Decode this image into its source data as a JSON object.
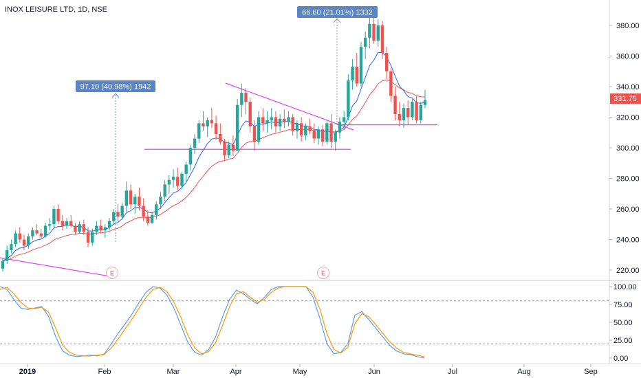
{
  "header": {
    "title": "INOX LEISURE LTD, 1D, NSE"
  },
  "chart_data": [
    {
      "type": "candlestick",
      "title": "INOX LEISURE LTD, 1D, NSE",
      "y_ticks": [
        "220.00",
        "240.00",
        "260.00",
        "280.00",
        "300.00",
        "320.00",
        "340.00",
        "360.00",
        "380.00"
      ],
      "ylim": [
        212,
        392
      ],
      "last_price": "331.75",
      "x_ticks": [
        "2019",
        "Feb",
        "Mar",
        "Apr",
        "May",
        "Jun",
        "Jul",
        "Aug",
        "Sep"
      ],
      "measure_labels": [
        "97.10 (40.98%) 1942",
        "66.60 (21.01%) 1332"
      ],
      "earnings_markers": [
        "E",
        "E"
      ],
      "horizontal_levels": [
        299,
        315
      ],
      "ohlc": [
        [
          221,
          228,
          219,
          226
        ],
        [
          226,
          236,
          224,
          233
        ],
        [
          233,
          240,
          231,
          237
        ],
        [
          237,
          246,
          235,
          244
        ],
        [
          244,
          248,
          238,
          240
        ],
        [
          240,
          243,
          233,
          236
        ],
        [
          236,
          244,
          234,
          242
        ],
        [
          242,
          248,
          240,
          246
        ],
        [
          246,
          250,
          243,
          244
        ],
        [
          244,
          247,
          240,
          242
        ],
        [
          242,
          251,
          241,
          249
        ],
        [
          249,
          254,
          246,
          250
        ],
        [
          250,
          262,
          248,
          260
        ],
        [
          260,
          263,
          250,
          252
        ],
        [
          252,
          256,
          246,
          249
        ],
        [
          249,
          254,
          247,
          252
        ],
        [
          252,
          256,
          248,
          249
        ],
        [
          249,
          251,
          243,
          245
        ],
        [
          245,
          252,
          244,
          250
        ],
        [
          250,
          253,
          243,
          245
        ],
        [
          245,
          248,
          235,
          238
        ],
        [
          238,
          247,
          236,
          245
        ],
        [
          245,
          252,
          243,
          249
        ],
        [
          249,
          253,
          244,
          246
        ],
        [
          246,
          250,
          241,
          248
        ],
        [
          248,
          254,
          246,
          252
        ],
        [
          252,
          260,
          250,
          258
        ],
        [
          258,
          263,
          252,
          255
        ],
        [
          255,
          264,
          253,
          262
        ],
        [
          262,
          278,
          258,
          272
        ],
        [
          272,
          276,
          260,
          263
        ],
        [
          263,
          270,
          257,
          268
        ],
        [
          268,
          274,
          259,
          262
        ],
        [
          262,
          267,
          252,
          255
        ],
        [
          255,
          259,
          249,
          251
        ],
        [
          251,
          258,
          250,
          256
        ],
        [
          256,
          265,
          253,
          263
        ],
        [
          263,
          271,
          260,
          268
        ],
        [
          268,
          279,
          265,
          276
        ],
        [
          276,
          282,
          270,
          279
        ],
        [
          279,
          286,
          274,
          281
        ],
        [
          281,
          287,
          272,
          275
        ],
        [
          275,
          284,
          273,
          283
        ],
        [
          283,
          291,
          278,
          289
        ],
        [
          289,
          302,
          285,
          300
        ],
        [
          300,
          309,
          296,
          306
        ],
        [
          306,
          318,
          303,
          316
        ],
        [
          316,
          324,
          311,
          314
        ],
        [
          314,
          320,
          307,
          318
        ],
        [
          318,
          326,
          313,
          316
        ],
        [
          316,
          321,
          305,
          309
        ],
        [
          309,
          316,
          302,
          304
        ],
        [
          304,
          306,
          292,
          295
        ],
        [
          295,
          304,
          293,
          302
        ],
        [
          302,
          308,
          295,
          298
        ],
        [
          298,
          332,
          298,
          328
        ],
        [
          328,
          342,
          320,
          336
        ],
        [
          336,
          339,
          322,
          330
        ],
        [
          330,
          333,
          310,
          314
        ],
        [
          314,
          318,
          298,
          304
        ],
        [
          304,
          324,
          302,
          320
        ],
        [
          320,
          326,
          311,
          316
        ],
        [
          316,
          324,
          310,
          318
        ],
        [
          318,
          326,
          312,
          320
        ],
        [
          320,
          324,
          310,
          314
        ],
        [
          314,
          322,
          311,
          319
        ],
        [
          319,
          325,
          313,
          317
        ],
        [
          317,
          324,
          314,
          320
        ],
        [
          320,
          322,
          308,
          311
        ],
        [
          311,
          318,
          306,
          316
        ],
        [
          316,
          320,
          304,
          308
        ],
        [
          308,
          316,
          305,
          314
        ],
        [
          314,
          319,
          309,
          311
        ],
        [
          311,
          316,
          303,
          306
        ],
        [
          306,
          314,
          302,
          312
        ],
        [
          312,
          315,
          301,
          304
        ],
        [
          304,
          318,
          302,
          316
        ],
        [
          316,
          322,
          300,
          304
        ],
        [
          304,
          312,
          298,
          310
        ],
        [
          310,
          320,
          306,
          317
        ],
        [
          317,
          324,
          312,
          320
        ],
        [
          320,
          348,
          318,
          344
        ],
        [
          344,
          358,
          338,
          353
        ],
        [
          353,
          362,
          340,
          342
        ],
        [
          342,
          369,
          340,
          366
        ],
        [
          366,
          376,
          358,
          372
        ],
        [
          372,
          385,
          365,
          381
        ],
        [
          381,
          386,
          368,
          370
        ],
        [
          370,
          384,
          366,
          380
        ],
        [
          380,
          383,
          358,
          362
        ],
        [
          362,
          366,
          345,
          350
        ],
        [
          350,
          352,
          330,
          334
        ],
        [
          334,
          340,
          318,
          322
        ],
        [
          322,
          330,
          314,
          318
        ],
        [
          318,
          329,
          313,
          326
        ],
        [
          326,
          331,
          315,
          320
        ],
        [
          320,
          332,
          318,
          330
        ],
        [
          330,
          334,
          316,
          318
        ],
        [
          318,
          330,
          316,
          328
        ],
        [
          328,
          338,
          326,
          331
        ]
      ]
    },
    {
      "type": "line",
      "title": "",
      "y_ticks": [
        "0.00",
        "25.00",
        "50.00",
        "75.00",
        "100.00"
      ],
      "ylim": [
        -8,
        108
      ],
      "levels": [
        20,
        80
      ],
      "series": [
        {
          "values": [
            100,
            96,
            82,
            70,
            68,
            70,
            72,
            58,
            30,
            10,
            4,
            2,
            3,
            4,
            3,
            6,
            20,
            35,
            48,
            62,
            78,
            92,
            100,
            98,
            88,
            70,
            46,
            22,
            8,
            4,
            12,
            30,
            58,
            82,
            95,
            90,
            82,
            76,
            85,
            96,
            100,
            100,
            100,
            100,
            100,
            85,
            55,
            20,
            6,
            8,
            20,
            60,
            65,
            54,
            42,
            30,
            18,
            10,
            6,
            5,
            2,
            0
          ]
        },
        {
          "values": [
            96,
            99,
            90,
            78,
            70,
            69,
            71,
            64,
            42,
            18,
            8,
            4,
            3,
            3,
            4,
            5,
            14,
            27,
            41,
            55,
            70,
            85,
            96,
            99,
            93,
            78,
            57,
            32,
            14,
            6,
            9,
            22,
            46,
            72,
            90,
            93,
            85,
            78,
            82,
            92,
            98,
            100,
            100,
            100,
            100,
            92,
            68,
            34,
            12,
            7,
            15,
            48,
            62,
            58,
            47,
            35,
            23,
            14,
            8,
            6,
            4,
            2
          ]
        }
      ]
    }
  ]
}
